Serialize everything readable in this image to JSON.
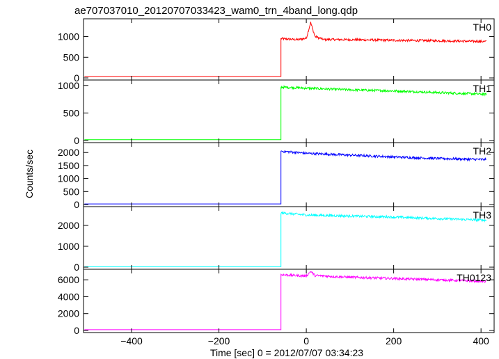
{
  "chart_data": {
    "type": "line",
    "title": "ae707037010_20120707033423_wam0_trn_4band_long.qdp",
    "xlabel": "Time [sec] 0 = 2012/07/07 03:34:23",
    "ylabel": "Counts/sec",
    "xlim": [
      -510,
      430
    ],
    "x_ticks": [
      -400,
      -200,
      0,
      200,
      400
    ],
    "x_tick_labels": [
      "−400",
      "−200",
      "0",
      "200",
      "400"
    ],
    "onset_time": -58,
    "grid": false,
    "series": [
      {
        "name": "TH0",
        "color": "#ff0000",
        "ylim": [
          0,
          1380
        ],
        "y_ticks": [
          0,
          500,
          1000
        ],
        "pre_level": 35,
        "points": [
          [
            -58,
            950
          ],
          [
            -20,
            925
          ],
          [
            0,
            960
          ],
          [
            10,
            1340
          ],
          [
            20,
            1000
          ],
          [
            40,
            930
          ],
          [
            100,
            925
          ],
          [
            200,
            910
          ],
          [
            300,
            900
          ],
          [
            410,
            880
          ]
        ]
      },
      {
        "name": "TH1",
        "color": "#00ff00",
        "ylim": [
          0,
          1060
        ],
        "y_ticks": [
          0,
          500,
          1000
        ],
        "pre_level": 15,
        "points": [
          [
            -58,
            970
          ],
          [
            0,
            950
          ],
          [
            100,
            920
          ],
          [
            200,
            900
          ],
          [
            300,
            870
          ],
          [
            410,
            840
          ]
        ]
      },
      {
        "name": "TH2",
        "color": "#0000ff",
        "ylim": [
          0,
          2300
        ],
        "y_ticks": [
          0,
          500,
          1000,
          1500,
          2000
        ],
        "pre_level": 25,
        "points": [
          [
            -58,
            2050
          ],
          [
            0,
            1970
          ],
          [
            100,
            1900
          ],
          [
            200,
            1830
          ],
          [
            300,
            1770
          ],
          [
            410,
            1730
          ]
        ]
      },
      {
        "name": "TH3",
        "color": "#00ffff",
        "ylim": [
          0,
          2800
        ],
        "y_ticks": [
          0,
          1000,
          2000
        ],
        "pre_level": 20,
        "points": [
          [
            -58,
            2600
          ],
          [
            0,
            2500
          ],
          [
            100,
            2450
          ],
          [
            200,
            2400
          ],
          [
            300,
            2330
          ],
          [
            410,
            2250
          ]
        ]
      },
      {
        "name": "TH0123",
        "color": "#ff00ff",
        "ylim": [
          0,
          7000
        ],
        "y_ticks": [
          0,
          2000,
          4000,
          6000
        ],
        "pre_level": 90,
        "points": [
          [
            -58,
            6600
          ],
          [
            0,
            6450
          ],
          [
            10,
            7000
          ],
          [
            20,
            6500
          ],
          [
            100,
            6300
          ],
          [
            200,
            6150
          ],
          [
            300,
            6000
          ],
          [
            410,
            5800
          ]
        ]
      }
    ]
  }
}
